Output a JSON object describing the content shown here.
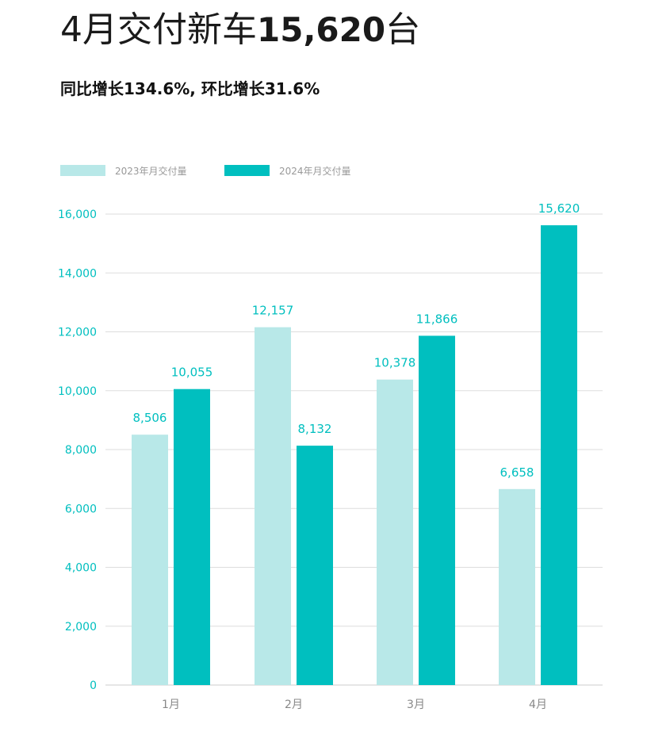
{
  "headline": {
    "prefix": "4月交付新车",
    "number": "15,620",
    "suffix": "台"
  },
  "subtitle": "同比增长134.6%, 环比增长31.6%",
  "colors": {
    "series_2023": "#b8e8e8",
    "series_2024": "#00bfbf",
    "axis_text": "#00bfbf",
    "category_text": "#888888",
    "legend_text": "#999999",
    "grid": "#dddddd",
    "baseline": "#cccccc"
  },
  "chart_data": {
    "type": "bar",
    "categories": [
      "1月",
      "2月",
      "3月",
      "4月"
    ],
    "series": [
      {
        "name": "2023年月交付量",
        "values": [
          8506,
          12157,
          10378,
          6658
        ]
      },
      {
        "name": "2024年月交付量",
        "values": [
          10055,
          8132,
          11866,
          15620
        ]
      }
    ],
    "data_labels": [
      [
        "8,506",
        "12,157",
        "10,378",
        "6,658"
      ],
      [
        "10,055",
        "8,132",
        "11,866",
        "15,620"
      ]
    ],
    "yticks": [
      0,
      2000,
      4000,
      6000,
      8000,
      10000,
      12000,
      14000,
      16000
    ],
    "ytick_labels": [
      "0",
      "2,000",
      "4,000",
      "6,000",
      "8,000",
      "10,000",
      "12,000",
      "14,000",
      "16,000"
    ],
    "ylim": [
      0,
      16000
    ],
    "grid": true,
    "legend": "top-left",
    "title": "",
    "xlabel": "",
    "ylabel": ""
  }
}
